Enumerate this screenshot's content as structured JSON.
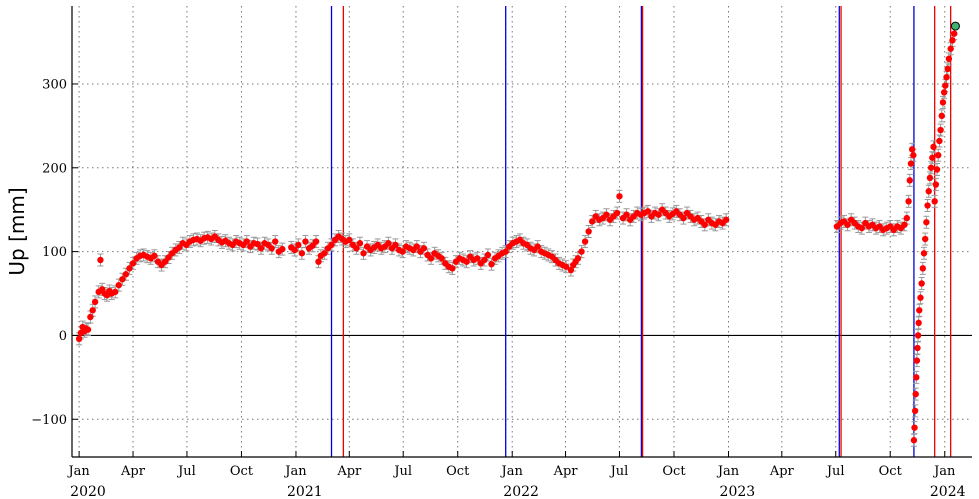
{
  "chart_data": {
    "type": "scatter",
    "title": "",
    "xlabel": "",
    "ylabel": "Up [mm]",
    "xlim": [
      "2019-12-20",
      "2024-02-16"
    ],
    "ylim": [
      -145,
      393
    ],
    "grid": true,
    "legend": "none",
    "y_ticks": [
      -100,
      0,
      100,
      200,
      300
    ],
    "y_tick_labels": [
      "−100",
      "0",
      "100",
      "200",
      "300"
    ],
    "x_ticks": [
      "2020-01-01",
      "2020-04-01",
      "2020-07-01",
      "2020-10-01",
      "2021-01-01",
      "2021-04-01",
      "2021-07-01",
      "2021-10-01",
      "2022-01-01",
      "2022-04-01",
      "2022-07-01",
      "2022-10-01",
      "2023-01-01",
      "2023-04-01",
      "2023-07-01",
      "2023-10-01",
      "2024-01-01"
    ],
    "x_tick_labels": [
      "Jan",
      "Apr",
      "Jul",
      "Oct",
      "Jan",
      "Apr",
      "Jul",
      "Oct",
      "Jan",
      "Apr",
      "Jul",
      "Oct",
      "Jan",
      "Apr",
      "Jul",
      "Oct",
      "Jan"
    ],
    "year_labels": [
      {
        "text": "2020",
        "date": "2020-01-16"
      },
      {
        "text": "2021",
        "date": "2021-01-16"
      },
      {
        "text": "2022",
        "date": "2022-01-16"
      },
      {
        "text": "2023",
        "date": "2023-01-16"
      },
      {
        "text": "2024",
        "date": "2024-01-06"
      }
    ],
    "reference_line": {
      "y": 0,
      "color": "#000000"
    },
    "vlines_blue": [
      "2021-03-02",
      "2021-12-21",
      "2022-08-07",
      "2023-07-07",
      "2023-11-10"
    ],
    "vlines_red": [
      "2021-03-22",
      "2022-08-09",
      "2023-07-10",
      "2023-12-15",
      "2024-01-11"
    ],
    "series": [
      {
        "color": "#ff0000",
        "error_color": "#999999",
        "points": [
          [
            "2020-01-01",
            -4
          ],
          [
            "2020-01-04",
            3
          ],
          [
            "2020-01-07",
            10
          ],
          [
            "2020-01-10",
            5
          ],
          [
            "2020-01-13",
            8
          ],
          [
            "2020-01-16",
            7
          ],
          [
            "2020-01-20",
            22
          ],
          [
            "2020-01-24",
            30
          ],
          [
            "2020-01-28",
            40
          ],
          [
            "2020-02-03",
            52
          ],
          [
            "2020-02-06",
            90
          ],
          [
            "2020-02-09",
            55
          ],
          [
            "2020-02-13",
            50
          ],
          [
            "2020-02-17",
            48
          ],
          [
            "2020-02-21",
            53
          ],
          [
            "2020-02-25",
            50
          ],
          [
            "2020-03-02",
            52
          ],
          [
            "2020-03-08",
            60
          ],
          [
            "2020-03-14",
            67
          ],
          [
            "2020-03-20",
            73
          ],
          [
            "2020-03-26",
            80
          ],
          [
            "2020-04-01",
            86
          ],
          [
            "2020-04-07",
            92
          ],
          [
            "2020-04-13",
            95
          ],
          [
            "2020-04-19",
            96
          ],
          [
            "2020-04-25",
            94
          ],
          [
            "2020-05-01",
            92
          ],
          [
            "2020-05-07",
            95
          ],
          [
            "2020-05-13",
            88
          ],
          [
            "2020-05-19",
            84
          ],
          [
            "2020-05-25",
            88
          ],
          [
            "2020-05-31",
            93
          ],
          [
            "2020-06-06",
            98
          ],
          [
            "2020-06-12",
            102
          ],
          [
            "2020-06-18",
            105
          ],
          [
            "2020-06-24",
            110
          ],
          [
            "2020-06-30",
            108
          ],
          [
            "2020-07-06",
            112
          ],
          [
            "2020-07-12",
            114
          ],
          [
            "2020-07-18",
            115
          ],
          [
            "2020-07-24",
            113
          ],
          [
            "2020-07-30",
            116
          ],
          [
            "2020-08-05",
            117
          ],
          [
            "2020-08-11",
            115
          ],
          [
            "2020-08-17",
            118
          ],
          [
            "2020-08-23",
            114
          ],
          [
            "2020-08-29",
            111
          ],
          [
            "2020-09-04",
            113
          ],
          [
            "2020-09-10",
            110
          ],
          [
            "2020-09-16",
            108
          ],
          [
            "2020-09-22",
            112
          ],
          [
            "2020-09-28",
            110
          ],
          [
            "2020-10-04",
            108
          ],
          [
            "2020-10-10",
            112
          ],
          [
            "2020-10-16",
            106
          ],
          [
            "2020-10-22",
            110
          ],
          [
            "2020-10-28",
            109
          ],
          [
            "2020-11-03",
            104
          ],
          [
            "2020-11-09",
            110
          ],
          [
            "2020-11-15",
            108
          ],
          [
            "2020-11-21",
            104
          ],
          [
            "2020-11-27",
            112
          ],
          [
            "2020-12-03",
            100
          ],
          [
            "2020-12-09",
            103
          ],
          [
            "2020-12-24",
            105
          ],
          [
            "2020-12-30",
            102
          ],
          [
            "2021-01-05",
            108
          ],
          [
            "2021-01-11",
            98
          ],
          [
            "2021-01-17",
            112
          ],
          [
            "2021-01-23",
            104
          ],
          [
            "2021-01-29",
            107
          ],
          [
            "2021-02-04",
            112
          ],
          [
            "2021-02-08",
            88
          ],
          [
            "2021-02-12",
            95
          ],
          [
            "2021-02-18",
            98
          ],
          [
            "2021-02-24",
            104
          ],
          [
            "2021-03-02",
            108
          ],
          [
            "2021-03-08",
            114
          ],
          [
            "2021-03-14",
            118
          ],
          [
            "2021-03-20",
            115
          ],
          [
            "2021-03-26",
            112
          ],
          [
            "2021-04-01",
            114
          ],
          [
            "2021-04-07",
            108
          ],
          [
            "2021-04-13",
            104
          ],
          [
            "2021-04-19",
            110
          ],
          [
            "2021-04-25",
            98
          ],
          [
            "2021-05-01",
            106
          ],
          [
            "2021-05-07",
            102
          ],
          [
            "2021-05-13",
            105
          ],
          [
            "2021-05-19",
            108
          ],
          [
            "2021-05-25",
            104
          ],
          [
            "2021-05-31",
            106
          ],
          [
            "2021-06-06",
            110
          ],
          [
            "2021-06-12",
            104
          ],
          [
            "2021-06-18",
            108
          ],
          [
            "2021-06-24",
            102
          ],
          [
            "2021-06-30",
            100
          ],
          [
            "2021-07-06",
            106
          ],
          [
            "2021-07-12",
            104
          ],
          [
            "2021-07-18",
            102
          ],
          [
            "2021-07-24",
            106
          ],
          [
            "2021-07-30",
            100
          ],
          [
            "2021-08-05",
            104
          ],
          [
            "2021-08-11",
            96
          ],
          [
            "2021-08-17",
            92
          ],
          [
            "2021-08-23",
            98
          ],
          [
            "2021-08-29",
            95
          ],
          [
            "2021-09-04",
            92
          ],
          [
            "2021-09-10",
            86
          ],
          [
            "2021-09-16",
            82
          ],
          [
            "2021-09-22",
            80
          ],
          [
            "2021-09-28",
            88
          ],
          [
            "2021-10-04",
            92
          ],
          [
            "2021-10-10",
            90
          ],
          [
            "2021-10-16",
            88
          ],
          [
            "2021-10-22",
            94
          ],
          [
            "2021-10-28",
            90
          ],
          [
            "2021-11-03",
            92
          ],
          [
            "2021-11-09",
            86
          ],
          [
            "2021-11-15",
            90
          ],
          [
            "2021-11-21",
            96
          ],
          [
            "2021-11-27",
            85
          ],
          [
            "2021-12-03",
            92
          ],
          [
            "2021-12-09",
            95
          ],
          [
            "2021-12-15",
            98
          ],
          [
            "2021-12-21",
            100
          ],
          [
            "2021-12-27",
            106
          ],
          [
            "2022-01-02",
            110
          ],
          [
            "2022-01-08",
            112
          ],
          [
            "2022-01-14",
            114
          ],
          [
            "2022-01-20",
            110
          ],
          [
            "2022-01-26",
            108
          ],
          [
            "2022-02-01",
            104
          ],
          [
            "2022-02-07",
            102
          ],
          [
            "2022-02-13",
            106
          ],
          [
            "2022-02-19",
            100
          ],
          [
            "2022-02-25",
            98
          ],
          [
            "2022-03-03",
            96
          ],
          [
            "2022-03-09",
            94
          ],
          [
            "2022-03-15",
            90
          ],
          [
            "2022-03-21",
            86
          ],
          [
            "2022-03-27",
            84
          ],
          [
            "2022-04-02",
            82
          ],
          [
            "2022-04-10",
            78
          ],
          [
            "2022-04-14",
            84
          ],
          [
            "2022-04-18",
            88
          ],
          [
            "2022-04-22",
            92
          ],
          [
            "2022-04-28",
            100
          ],
          [
            "2022-05-04",
            112
          ],
          [
            "2022-05-10",
            124
          ],
          [
            "2022-05-16",
            136
          ],
          [
            "2022-05-22",
            142
          ],
          [
            "2022-05-28",
            138
          ],
          [
            "2022-06-03",
            140
          ],
          [
            "2022-06-09",
            144
          ],
          [
            "2022-06-15",
            138
          ],
          [
            "2022-06-21",
            142
          ],
          [
            "2022-06-27",
            146
          ],
          [
            "2022-07-01",
            166
          ],
          [
            "2022-07-07",
            140
          ],
          [
            "2022-07-13",
            144
          ],
          [
            "2022-07-19",
            138
          ],
          [
            "2022-07-25",
            142
          ],
          [
            "2022-07-31",
            146
          ],
          [
            "2022-08-06",
            144
          ],
          [
            "2022-08-12",
            146
          ],
          [
            "2022-08-18",
            148
          ],
          [
            "2022-08-24",
            142
          ],
          [
            "2022-08-30",
            146
          ],
          [
            "2022-09-05",
            144
          ],
          [
            "2022-09-11",
            150
          ],
          [
            "2022-09-17",
            146
          ],
          [
            "2022-09-23",
            142
          ],
          [
            "2022-09-29",
            145
          ],
          [
            "2022-10-05",
            148
          ],
          [
            "2022-10-11",
            144
          ],
          [
            "2022-10-17",
            140
          ],
          [
            "2022-10-23",
            146
          ],
          [
            "2022-10-29",
            142
          ],
          [
            "2022-11-04",
            138
          ],
          [
            "2022-11-10",
            140
          ],
          [
            "2022-11-16",
            136
          ],
          [
            "2022-11-22",
            132
          ],
          [
            "2022-11-28",
            138
          ],
          [
            "2022-12-04",
            134
          ],
          [
            "2022-12-10",
            132
          ],
          [
            "2022-12-16",
            136
          ],
          [
            "2022-12-22",
            134
          ],
          [
            "2022-12-28",
            138
          ],
          [
            "2023-07-03",
            130
          ],
          [
            "2023-07-09",
            134
          ],
          [
            "2023-07-15",
            136
          ],
          [
            "2023-07-21",
            132
          ],
          [
            "2023-07-27",
            138
          ],
          [
            "2023-08-02",
            134
          ],
          [
            "2023-08-08",
            130
          ],
          [
            "2023-08-14",
            128
          ],
          [
            "2023-08-20",
            134
          ],
          [
            "2023-08-26",
            130
          ],
          [
            "2023-09-01",
            132
          ],
          [
            "2023-09-07",
            128
          ],
          [
            "2023-09-13",
            130
          ],
          [
            "2023-09-19",
            126
          ],
          [
            "2023-09-25",
            128
          ],
          [
            "2023-10-01",
            130
          ],
          [
            "2023-10-07",
            126
          ],
          [
            "2023-10-13",
            130
          ],
          [
            "2023-10-19",
            128
          ],
          [
            "2023-10-25",
            132
          ],
          [
            "2023-10-29",
            140
          ],
          [
            "2023-11-01",
            160
          ],
          [
            "2023-11-03",
            185
          ],
          [
            "2023-11-05",
            205
          ],
          [
            "2023-11-07",
            222
          ],
          [
            "2023-11-09",
            215
          ],
          [
            "2023-11-10",
            -125
          ],
          [
            "2023-11-11",
            -110
          ],
          [
            "2023-11-12",
            -90
          ],
          [
            "2023-11-13",
            -70
          ],
          [
            "2023-11-14",
            -50
          ],
          [
            "2023-11-15",
            -30
          ],
          [
            "2023-11-16",
            -15
          ],
          [
            "2023-11-17",
            0
          ],
          [
            "2023-11-18",
            15
          ],
          [
            "2023-11-19",
            30
          ],
          [
            "2023-11-21",
            45
          ],
          [
            "2023-11-23",
            62
          ],
          [
            "2023-11-25",
            80
          ],
          [
            "2023-11-27",
            98
          ],
          [
            "2023-11-29",
            115
          ],
          [
            "2023-12-01",
            135
          ],
          [
            "2023-12-03",
            155
          ],
          [
            "2023-12-05",
            172
          ],
          [
            "2023-12-07",
            188
          ],
          [
            "2023-12-09",
            200
          ],
          [
            "2023-12-11",
            212
          ],
          [
            "2023-12-13",
            225
          ],
          [
            "2023-12-15",
            160
          ],
          [
            "2023-12-17",
            180
          ],
          [
            "2023-12-19",
            198
          ],
          [
            "2023-12-21",
            215
          ],
          [
            "2023-12-23",
            232
          ],
          [
            "2023-12-25",
            245
          ],
          [
            "2023-12-27",
            262
          ],
          [
            "2023-12-29",
            278
          ],
          [
            "2023-12-31",
            290
          ],
          [
            "2024-01-02",
            298
          ],
          [
            "2024-01-04",
            308
          ],
          [
            "2024-01-06",
            318
          ],
          [
            "2024-01-08",
            330
          ],
          [
            "2024-01-11",
            342
          ],
          [
            "2024-01-14",
            352
          ],
          [
            "2024-01-17",
            360
          ]
        ]
      },
      {
        "color": "#3cb371",
        "points": [
          [
            "2024-01-19",
            369
          ]
        ]
      }
    ]
  }
}
